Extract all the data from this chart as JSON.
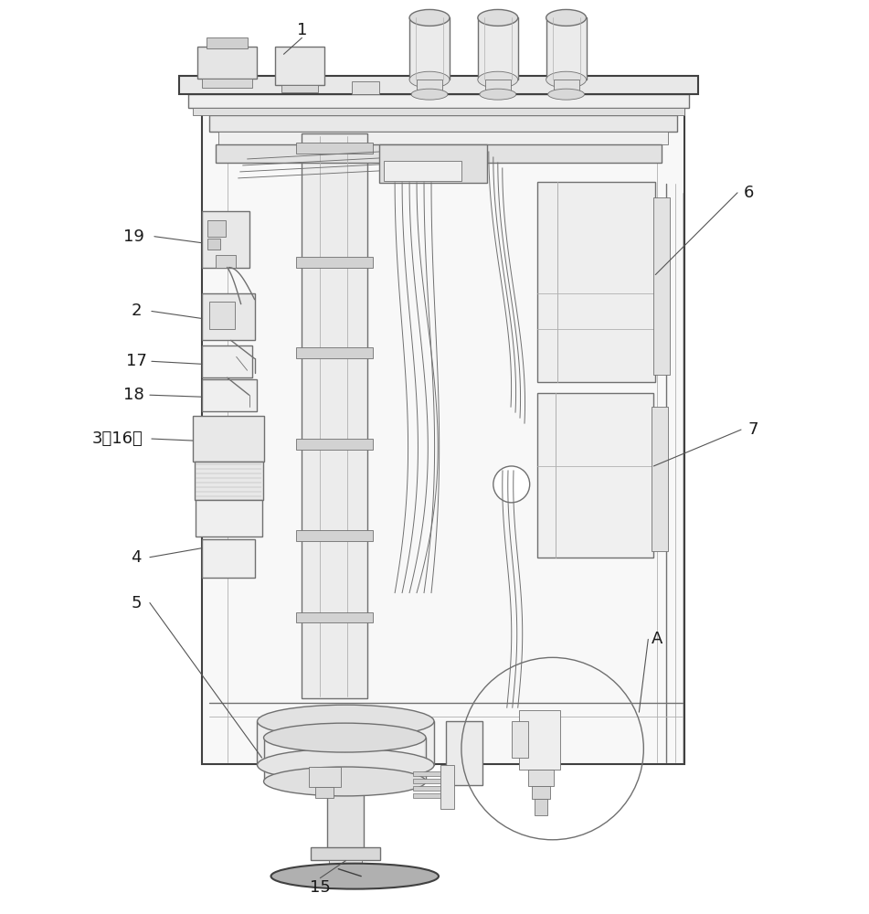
{
  "bg_color": "#ffffff",
  "lc": "#707070",
  "lcd": "#404040",
  "lcl": "#b0b0b0",
  "lw_main": 1.0,
  "lw_thin": 0.6,
  "lw_thick": 1.5,
  "label_fs": 13,
  "figsize": [
    9.51,
    10.0
  ],
  "dpi": 100
}
